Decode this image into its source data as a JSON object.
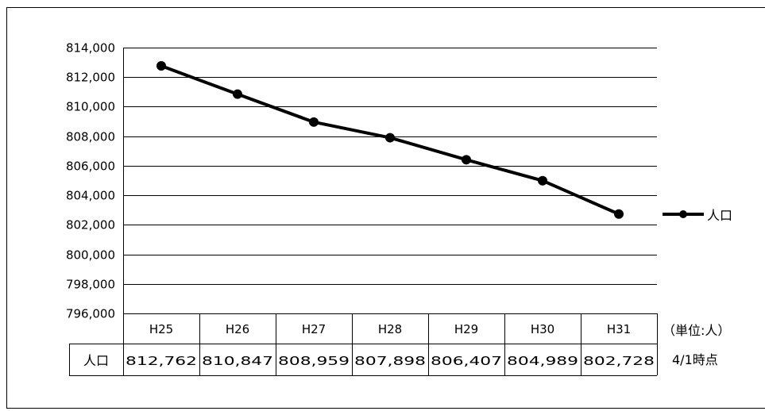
{
  "chart_data": {
    "type": "line",
    "categories": [
      "H25",
      "H26",
      "H27",
      "H28",
      "H29",
      "H30",
      "H31"
    ],
    "series": [
      {
        "name": "人口",
        "values": [
          812762,
          810847,
          808959,
          807898,
          806407,
          804989,
          802728
        ]
      }
    ],
    "ylim": [
      796000,
      814000
    ],
    "ytick_step": 2000,
    "yticks": [
      "814,000",
      "812,000",
      "810,000",
      "808,000",
      "806,000",
      "804,000",
      "802,000",
      "800,000",
      "798,000",
      "796,000"
    ],
    "grid": true,
    "legend": {
      "position": "right",
      "label": "人口"
    },
    "data_table": {
      "row_label": "人口",
      "values": [
        "812,762",
        "810,847",
        "808,959",
        "807,898",
        "806,407",
        "804,989",
        "802,728"
      ]
    },
    "unit_note": "（単位:人）",
    "date_note": "4/1時点",
    "line_color": "#000000",
    "grid_color": "#000000"
  }
}
